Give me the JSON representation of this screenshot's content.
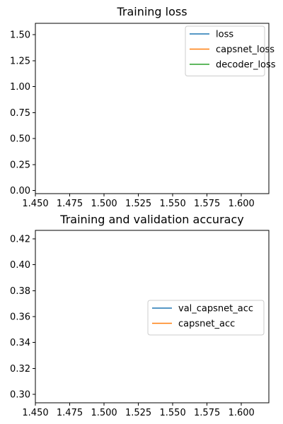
{
  "chart_data": [
    {
      "type": "line",
      "title": "Training loss",
      "xlabel": "",
      "ylabel": "",
      "xlim": [
        1.45,
        1.62
      ],
      "ylim": [
        -0.03,
        1.61
      ],
      "x_ticks": [
        "1.450",
        "1.475",
        "1.500",
        "1.525",
        "1.550",
        "1.575",
        "1.600"
      ],
      "y_ticks": [
        "0.00",
        "0.25",
        "0.50",
        "0.75",
        "1.00",
        "1.25",
        "1.50"
      ],
      "grid": false,
      "legend_position": "top-right",
      "series": [
        {
          "name": "loss",
          "color": "#1f77b4",
          "x": [],
          "y": []
        },
        {
          "name": "capsnet_loss",
          "color": "#ff7f0e",
          "x": [],
          "y": []
        },
        {
          "name": "decoder_loss",
          "color": "#2ca02c",
          "x": [],
          "y": []
        }
      ]
    },
    {
      "type": "line",
      "title": "Training and validation accuracy",
      "xlabel": "",
      "ylabel": "",
      "xlim": [
        1.45,
        1.62
      ],
      "ylim": [
        0.2935,
        0.4265
      ],
      "x_ticks": [
        "1.450",
        "1.475",
        "1.500",
        "1.525",
        "1.550",
        "1.575",
        "1.600"
      ],
      "y_ticks": [
        "0.30",
        "0.32",
        "0.34",
        "0.36",
        "0.38",
        "0.40",
        "0.42"
      ],
      "grid": false,
      "legend_position": "center-right",
      "series": [
        {
          "name": "val_capsnet_acc",
          "color": "#1f77b4",
          "x": [],
          "y": []
        },
        {
          "name": "capsnet_acc",
          "color": "#ff7f0e",
          "x": [],
          "y": []
        }
      ]
    }
  ]
}
